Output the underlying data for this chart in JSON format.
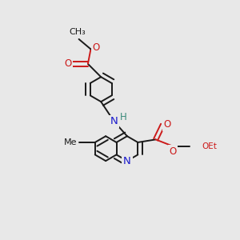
{
  "background_color": "#e8e8e8",
  "bond_color": "#1a1a1a",
  "N_color": "#1a1acc",
  "O_color": "#cc1a1a",
  "H_color": "#3a8a7a",
  "lw": 1.4,
  "dbo": 0.07,
  "fs": 8.5,
  "xlim": [
    0,
    10
  ],
  "ylim": [
    0,
    10
  ]
}
